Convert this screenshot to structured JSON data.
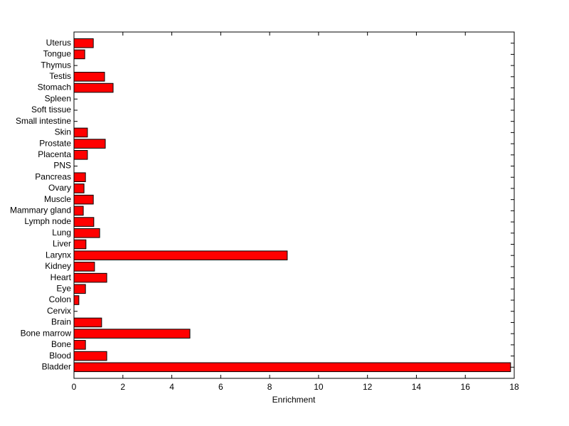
{
  "chart_data": {
    "type": "barh",
    "xlabel": "Enrichment",
    "categories": [
      "Bladder",
      "Blood",
      "Bone",
      "Bone marrow",
      "Brain",
      "Cervix",
      "Colon",
      "Eye",
      "Heart",
      "Kidney",
      "Larynx",
      "Liver",
      "Lung",
      "Lymph node",
      "Mammary gland",
      "Muscle",
      "Ovary",
      "Pancreas",
      "PNS",
      "Placenta",
      "Prostate",
      "Skin",
      "Small intestine",
      "Soft tissue",
      "Spleen",
      "Stomach",
      "Testis",
      "Thymus",
      "Tongue",
      "Uterus"
    ],
    "values": [
      17.85,
      1.34,
      0.47,
      4.74,
      1.13,
      0,
      0.2,
      0.47,
      1.34,
      0.84,
      8.72,
      0.49,
      1.05,
      0.81,
      0.38,
      0.79,
      0.41,
      0.47,
      0,
      0.55,
      1.28,
      0.55,
      0,
      0,
      0,
      1.6,
      1.25,
      0,
      0.44,
      0.79
    ],
    "color": "#ff0000",
    "xlim": [
      0,
      18
    ],
    "xticks": [
      0,
      2,
      4,
      6,
      8,
      10,
      12,
      14,
      16,
      18
    ],
    "grid": false
  }
}
